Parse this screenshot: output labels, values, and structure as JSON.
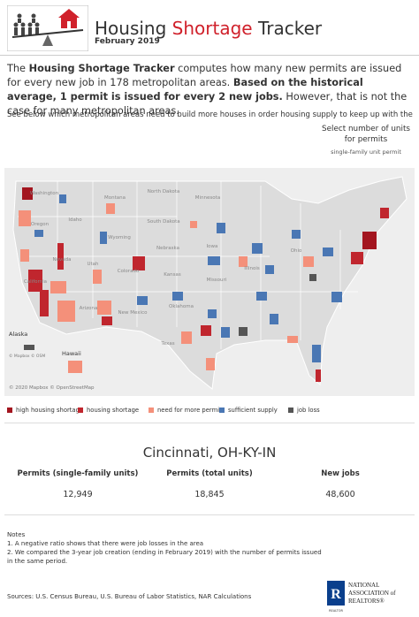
{
  "header": {
    "title_start": "Housing ",
    "title_highlight": "Shortage",
    "title_end": " Tracker",
    "subtitle": "February 2019"
  },
  "intro": {
    "segments": [
      {
        "text": "The ",
        "bold": false
      },
      {
        "text": "Housing Shortage Tracker",
        "bold": true
      },
      {
        "text": " computes how many new permits are issued for every new job in 178 metropolitan areas. ",
        "bold": false
      },
      {
        "text": "Based on the historical average, 1 permit is issued for every 2 new jobs.",
        "bold": true
      },
      {
        "text": " However, that is not the case for many metropolitan areas.",
        "bold": false
      }
    ],
    "note": "See below which metropolitan areas need to build more houses in order housing supply to keep up with the increased de.."
  },
  "selector": {
    "label": "Select number of units for permits",
    "value": "single-family unit permit"
  },
  "map": {
    "state_labels": [
      "Washington",
      "Montana",
      "North Dakota",
      "Minnesota",
      "Oregon",
      "Idaho",
      "South Dakota",
      "Wyoming",
      "Nebraska",
      "Iowa",
      "Nevada",
      "Utah",
      "Colorado",
      "Kansas",
      "Missouri",
      "California",
      "Arizona",
      "New Mexico",
      "Oklahoma",
      "Texas",
      "Illinois",
      "Ohio"
    ],
    "alaska": "Alaska",
    "hawaii": "Hawaii",
    "inset_attribution": "© Mapbox © OSM",
    "attribution": "© 2020 Mapbox © OpenStreetMap"
  },
  "legend": [
    "high housing shortage",
    "housing shortage",
    "need for more permits",
    "sufficient supply",
    "job loss"
  ],
  "detail": {
    "title": "Cincinnati, OH-KY-IN",
    "headers": [
      "Permits (single-family units)",
      "Permits (total units)",
      "New jobs"
    ],
    "values": [
      "12,949",
      "18,845",
      "48,600"
    ]
  },
  "notes": {
    "heading": "Notes",
    "items": [
      "1. A negative ratio shows that there were job losses in the area",
      "2. We compared the 3-year job creation (ending in February 2019) with the number of permits issued in the same period."
    ]
  },
  "sources": "Sources: U.S. Census Bureau, U.S. Bureau of Labor Statistics, NAR Calculations",
  "logo": {
    "line1": "NATIONAL",
    "line2": "ASSOCIATION of",
    "line3": "REALTORS®",
    "mark": "R",
    "caption": "REALTOR"
  }
}
